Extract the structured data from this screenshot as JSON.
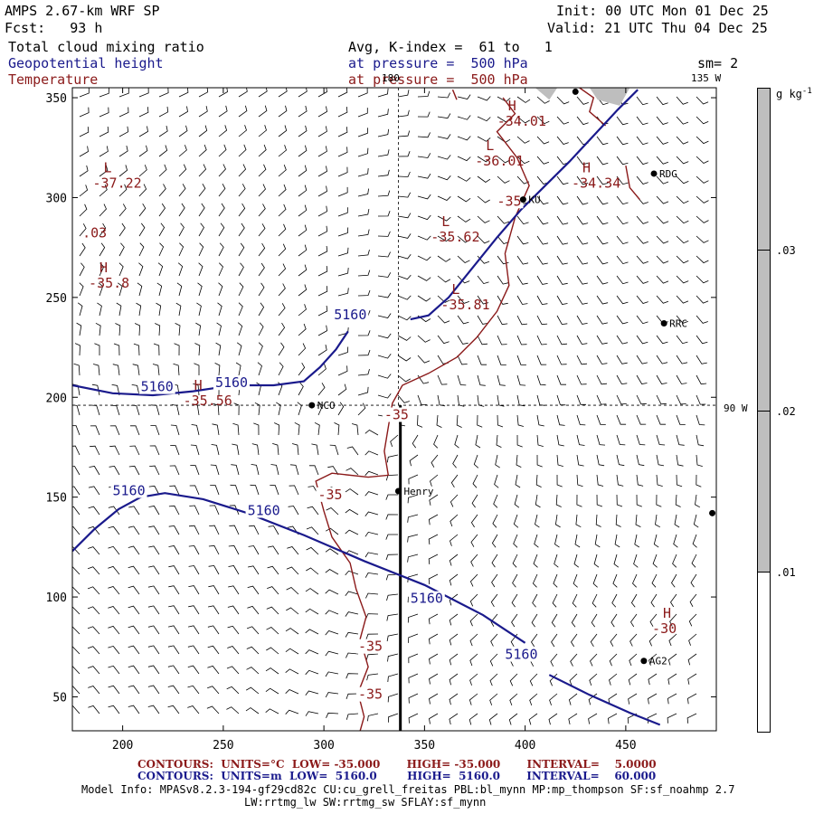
{
  "header": {
    "title": "AMPS 2.67-km WRF SP",
    "forecast": "Fcst:   93 h",
    "init": "Init: 00 UTC Mon 01 Dec 25",
    "valid": "Valid: 21 UTC Thu 04 Dec 25",
    "field1": "Total cloud mixing ratio",
    "field2": "Geopotential height",
    "field3": "Temperature",
    "avg": "Avg, K-index =  61 to   1",
    "pressure2": "at pressure =  500 hPa",
    "pressure3": "at pressure =  500 hPa",
    "sm": "sm= 2",
    "colors": {
      "black": "#000000",
      "blue": "#1a1a8c",
      "red": "#8b1a1a",
      "gray": "#bebebe"
    }
  },
  "map_labels": {
    "lon_180": "180",
    "lon_135w": "135 W",
    "lon_90w": "90 W"
  },
  "colorbar": {
    "unit": "g kg",
    "unit_sup": "-1",
    "ticks": [
      ".03",
      ".02",
      ".01"
    ]
  },
  "footer": {
    "red_line": "CONTOURS:  UNITS=°C  LOW= -35.000       HIGH= -35.000       INTERVAL=    5.0000",
    "blue_line": "CONTOURS:  UNITS=m  LOW=  5160.0        HIGH=  5160.0       INTERVAL=    60.000",
    "model_info": "Model Info: MPASv8.2.3-194-gf29cd82c CU:cu_grell_freitas PBL:bl_mynn MP:mp_thompson SF:sf_noahmp 2.7",
    "model_info2": "LW:rrtmg_lw SW:rrtmg_sw SFLAY:sf_mynn"
  },
  "chart_data": {
    "type": "contour",
    "title": "AMPS 2.67-km WRF SP",
    "xlim": [
      175,
      495
    ],
    "ylim": [
      33,
      355
    ],
    "x_ticks": [
      200,
      250,
      300,
      350,
      400,
      450
    ],
    "x_tick_labels": [
      "200",
      "250",
      "300",
      "350",
      "400",
      "450"
    ],
    "y_ticks": [
      50,
      100,
      150,
      200,
      250,
      300,
      350
    ],
    "y_tick_labels": [
      "50",
      "100",
      "150",
      "200",
      "250",
      "300",
      "350"
    ],
    "height_contour_value": "5160",
    "height_contours": [
      [
        [
          175,
          206
        ],
        [
          195,
          202
        ],
        [
          215,
          201
        ],
        [
          235,
          203
        ],
        [
          255,
          206
        ],
        [
          275,
          206
        ],
        [
          290,
          208
        ],
        [
          298,
          215
        ],
        [
          306,
          224
        ],
        [
          312,
          233
        ]
      ],
      [
        [
          343,
          239
        ],
        [
          352,
          241
        ],
        [
          362,
          250
        ],
        [
          374,
          265
        ],
        [
          386,
          280
        ],
        [
          398,
          294
        ],
        [
          410,
          306
        ],
        [
          422,
          318
        ],
        [
          434,
          331
        ],
        [
          446,
          344
        ],
        [
          456,
          354
        ]
      ],
      [
        [
          175,
          123
        ],
        [
          186,
          134
        ],
        [
          198,
          144
        ],
        [
          209,
          150
        ],
        [
          221,
          152
        ],
        [
          240,
          149
        ],
        [
          262,
          142
        ],
        [
          290,
          131
        ],
        [
          320,
          118
        ],
        [
          350,
          106
        ],
        [
          379,
          91
        ],
        [
          400,
          77
        ]
      ],
      [
        [
          412,
          61
        ],
        [
          432,
          51
        ],
        [
          452,
          42
        ],
        [
          467,
          36
        ]
      ]
    ],
    "height_label_points": [
      [
        209,
        203
      ],
      [
        246,
        205
      ],
      [
        305,
        239
      ],
      [
        195,
        151
      ],
      [
        262,
        141
      ],
      [
        343,
        97
      ],
      [
        390,
        69
      ]
    ],
    "temp_contour_value": "-35",
    "temp_contours": [
      [
        [
          364,
          354
        ],
        [
          366,
          349
        ]
      ],
      [
        [
          389,
          350
        ],
        [
          395,
          342
        ],
        [
          386,
          333
        ],
        [
          396,
          320
        ],
        [
          402,
          306
        ],
        [
          395,
          290
        ],
        [
          390,
          272
        ],
        [
          392,
          256
        ],
        [
          386,
          243
        ],
        [
          376,
          230
        ],
        [
          366,
          220
        ],
        [
          352,
          212
        ],
        [
          339,
          206
        ],
        [
          334,
          197
        ],
        [
          332,
          185
        ],
        [
          330,
          173
        ],
        [
          332,
          161
        ],
        [
          322,
          160
        ],
        [
          304,
          162
        ],
        [
          296,
          158
        ],
        [
          300,
          143
        ],
        [
          304,
          130
        ],
        [
          313,
          117
        ],
        [
          316,
          104
        ],
        [
          321,
          90
        ],
        [
          318,
          79
        ],
        [
          322,
          65
        ],
        [
          317,
          52
        ],
        [
          320,
          40
        ],
        [
          318,
          33
        ]
      ],
      [
        [
          440,
          336
        ],
        [
          432,
          343
        ],
        [
          434,
          350
        ],
        [
          427,
          355
        ]
      ],
      [
        [
          450,
          316
        ],
        [
          452,
          305
        ],
        [
          457,
          299
        ]
      ]
    ],
    "temp_label_points": [
      [
        386,
        296
      ],
      [
        330,
        189
      ],
      [
        297,
        149
      ],
      [
        317,
        73
      ],
      [
        317,
        49
      ]
    ],
    "extrema": [
      {
        "type": "L",
        "value": "-37.22",
        "x": 195,
        "y": 305
      },
      {
        "type": "H",
        "value": "-35.8",
        "x": 193,
        "y": 255
      },
      {
        "type": "H",
        "value": "-35.56",
        "x": 240,
        "y": 196
      },
      {
        "type": "H",
        "value": "-34.01",
        "x": 396,
        "y": 336
      },
      {
        "type": "L",
        "value": "-36.01",
        "x": 385,
        "y": 316
      },
      {
        "type": "L",
        "value": "-35.62",
        "x": 363,
        "y": 278
      },
      {
        "type": "L",
        "value": "-35.81",
        "x": 368,
        "y": 244
      },
      {
        "type": "H",
        "value": "-34.34",
        "x": 433,
        "y": 305
      },
      {
        "type": "H",
        "value": "-30",
        "x": 473,
        "y": 82
      }
    ],
    "shading_labels": [
      {
        "text": ".03",
        "x": 180,
        "y": 280
      }
    ],
    "stations": [
      {
        "name": "NCO",
        "x": 294,
        "y": 196
      },
      {
        "name": "Henry",
        "x": 337,
        "y": 153
      },
      {
        "name": "RDG",
        "x": 464,
        "y": 312
      },
      {
        "name": "RRC",
        "x": 469,
        "y": 237
      },
      {
        "name": "AG2",
        "x": 459,
        "y": 68
      },
      {
        "name": "KU",
        "x": 399,
        "y": 299
      },
      {
        "name": "",
        "x": 493,
        "y": 142
      },
      {
        "name": "",
        "x": 425,
        "y": 353
      }
    ],
    "reference_lines": {
      "meridian_x": 337,
      "parallel_y": 196,
      "section_x": 338,
      "section_y_range": [
        33,
        196
      ]
    }
  }
}
